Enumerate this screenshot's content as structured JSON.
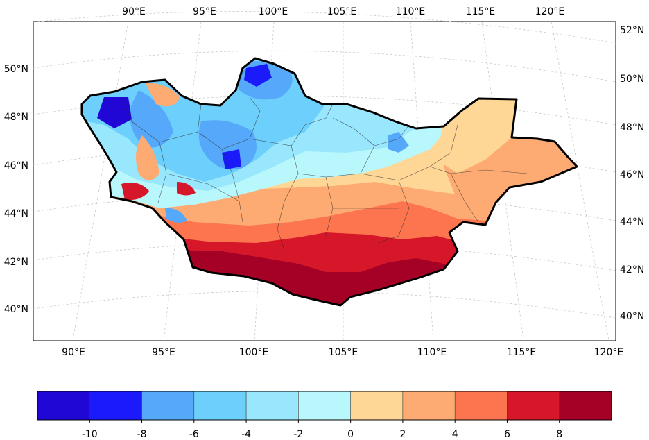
{
  "map": {
    "top_lon_labels": [
      "90°E",
      "95°E",
      "100°E",
      "105°E",
      "110°E",
      "115°E",
      "120°E"
    ],
    "bottom_lon_labels": [
      "90°E",
      "95°E",
      "100°E",
      "105°E",
      "110°E",
      "115°E",
      "120°E"
    ],
    "left_lat_labels": [
      "50°N",
      "48°N",
      "46°N",
      "44°N",
      "42°N",
      "40°N"
    ],
    "right_lat_labels": [
      "52°N",
      "50°N",
      "48°N",
      "46°N",
      "44°N",
      "42°N",
      "40°N"
    ],
    "region": "Mongolia",
    "projection": "conic",
    "gridlines": true
  },
  "colorbar": {
    "bins": [
      {
        "from": -12,
        "to": -10,
        "color": "#2007d6"
      },
      {
        "from": -10,
        "to": -8,
        "color": "#1a1afa"
      },
      {
        "from": -8,
        "to": -6,
        "color": "#56a9fa"
      },
      {
        "from": -6,
        "to": -4,
        "color": "#6ccffc"
      },
      {
        "from": -4,
        "to": -2,
        "color": "#98e7fd"
      },
      {
        "from": -2,
        "to": 0,
        "color": "#b8f8fd"
      },
      {
        "from": 0,
        "to": 2,
        "color": "#fed797"
      },
      {
        "from": 2,
        "to": 4,
        "color": "#fdab72"
      },
      {
        "from": 4,
        "to": 6,
        "color": "#fd754f"
      },
      {
        "from": 6,
        "to": 8,
        "color": "#d6172a"
      },
      {
        "from": 8,
        "to": 10,
        "color": "#a50126"
      }
    ],
    "tick_labels": [
      "-10",
      "-8",
      "-6",
      "-4",
      "-2",
      "0",
      "2",
      "4",
      "6",
      "8"
    ]
  }
}
